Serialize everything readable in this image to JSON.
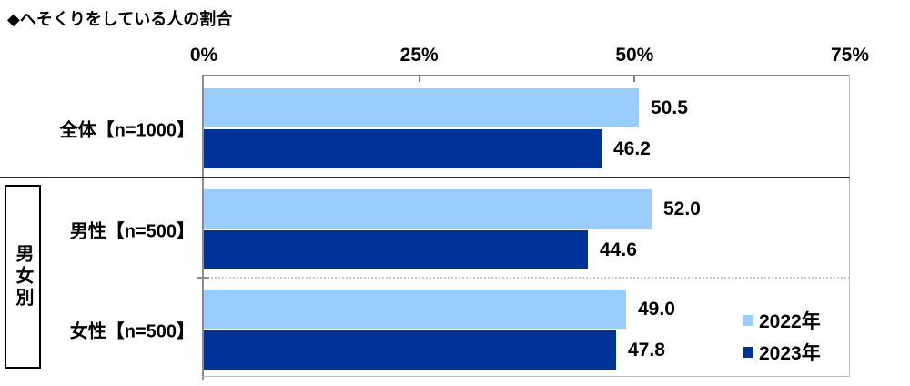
{
  "title": "◆へそくりをしている人の割合",
  "chart_data": {
    "type": "bar",
    "orientation": "horizontal",
    "title": "◆へそくりをしている人の割合",
    "categories": [
      "全体【n=1000】",
      "男性【n=500】",
      "女性【n=500】"
    ],
    "group_label": "男女別",
    "series": [
      {
        "name": "2022年",
        "color": "#99CCFF",
        "values": [
          50.5,
          52.0,
          49.0
        ]
      },
      {
        "name": "2023年",
        "color": "#003399",
        "values": [
          46.2,
          44.6,
          47.8
        ]
      }
    ],
    "xlim": [
      0,
      75
    ],
    "x_ticks": [
      0,
      25,
      50,
      75
    ],
    "x_tick_labels": [
      "0%",
      "25%",
      "50%",
      "75%"
    ],
    "value_labels": true,
    "legend_position": "right-bottom",
    "grid": "category-separators"
  },
  "colors": {
    "series_2022": "#99CCFF",
    "series_2023": "#003399",
    "axis_line": "#808080",
    "plot_border_light": "#C0C0C0",
    "separator_solid": "#262626",
    "separator_dotted": "#C4C9CF",
    "text": "#000000",
    "background": "#FFFFFF"
  }
}
